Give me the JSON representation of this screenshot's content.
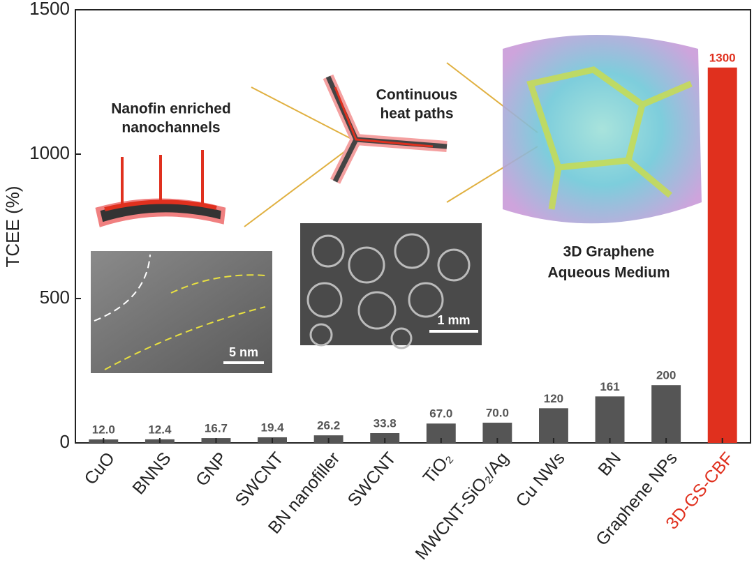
{
  "chart_data": {
    "type": "bar",
    "y_label": "TCEE (%)",
    "categories": [
      "CuO",
      "BNNS",
      "GNP",
      "SWCNT",
      "BN nanofiller",
      "SWCNT",
      "TiO₂",
      "MWCNT-SiO₂/Ag",
      "Cu NWs",
      "BN",
      "Graphene NPs",
      "3D-GS-CBF"
    ],
    "values": [
      12.0,
      12.4,
      16.7,
      19.4,
      26.2,
      33.8,
      67.0,
      70.0,
      120,
      161,
      200,
      1300
    ],
    "value_labels": [
      "12.0",
      "12.4",
      "16.7",
      "19.4",
      "26.2",
      "33.8",
      "67.0",
      "70.0",
      "120",
      "161",
      "200",
      "1300"
    ],
    "colors": [
      "#555555",
      "#555555",
      "#555555",
      "#555555",
      "#555555",
      "#555555",
      "#555555",
      "#555555",
      "#555555",
      "#555555",
      "#555555",
      "#e0301e"
    ],
    "label_colors": [
      "#222222",
      "#222222",
      "#222222",
      "#222222",
      "#222222",
      "#222222",
      "#222222",
      "#222222",
      "#222222",
      "#222222",
      "#222222",
      "#e0301e"
    ],
    "ylim": [
      0,
      1500
    ],
    "yticks": [
      0,
      500,
      1000,
      1500
    ],
    "annotations": {
      "nanofin": [
        "Nanofin enriched",
        "nanochannels"
      ],
      "heat": [
        "Continuous",
        "heat paths"
      ],
      "graphene": [
        "3D Graphene",
        "Aqueous Medium"
      ],
      "scale1": "5 nm",
      "scale2": "1 mm"
    }
  }
}
